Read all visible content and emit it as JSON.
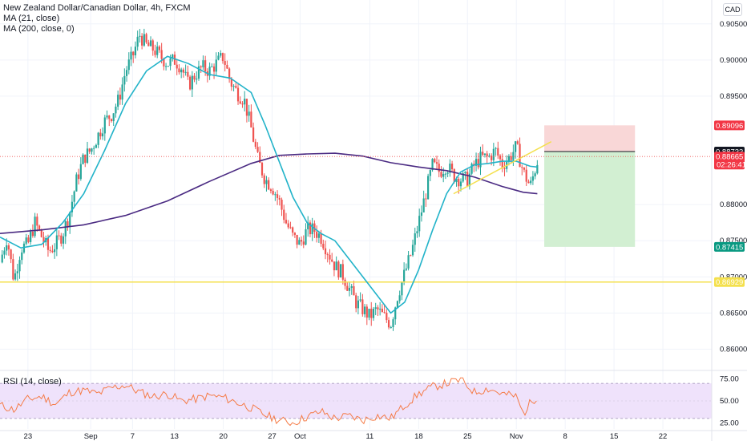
{
  "header": {
    "symbol_title": "New Zealand Dollar/Canadian Dollar, 4h, FXCM",
    "indicators": [
      "MA (21, close)",
      "MA (200, close, 0)"
    ],
    "currency": "CAD",
    "rsi_title": "RSI (14, close)"
  },
  "colors": {
    "up": "#26a69a",
    "down": "#ef5350",
    "ma21": "#22b3c9",
    "ma200": "#4a2a82",
    "support_line": "#f4e04d",
    "trendline": "#f4e04d",
    "stop_zone": "#f9d7d7",
    "target_zone": "#d2efd2",
    "rsi_line": "#f57c48",
    "rsi_band": "#efe2fb"
  },
  "chart_data": {
    "type": "candlestick",
    "x_labels": [
      {
        "label": "23",
        "day": 0
      },
      {
        "label": "Sep",
        "day": 9
      },
      {
        "label": "7",
        "day": 15
      },
      {
        "label": "13",
        "day": 21
      },
      {
        "label": "20",
        "day": 28
      },
      {
        "label": "27",
        "day": 35
      },
      {
        "label": "Oct",
        "day": 39
      },
      {
        "label": "11",
        "day": 49
      },
      {
        "label": "18",
        "day": 56
      },
      {
        "label": "25",
        "day": 63
      },
      {
        "label": "Nov",
        "day": 70
      },
      {
        "label": "8",
        "day": 77
      },
      {
        "label": "15",
        "day": 84
      },
      {
        "label": "22",
        "day": 91
      }
    ],
    "y_ticks": [
      "0.90500",
      "0.90000",
      "0.89500",
      "0.88000",
      "0.87500",
      "0.87000",
      "0.86500",
      "0.86000"
    ],
    "y_range": [
      0.8575,
      0.9083
    ],
    "x_range_days": [
      -4.0,
      98.0
    ],
    "price_path": [
      [
        -4,
        0.872
      ],
      [
        -3,
        0.8755
      ],
      [
        -2,
        0.8695
      ],
      [
        -1,
        0.874
      ],
      [
        0,
        0.8745
      ],
      [
        1,
        0.8775
      ],
      [
        2,
        0.8755
      ],
      [
        3,
        0.8735
      ],
      [
        4,
        0.8745
      ],
      [
        5,
        0.876
      ],
      [
        6,
        0.879
      ],
      [
        7,
        0.8835
      ],
      [
        8,
        0.8865
      ],
      [
        9,
        0.8875
      ],
      [
        10,
        0.8895
      ],
      [
        11,
        0.8915
      ],
      [
        12,
        0.8925
      ],
      [
        13,
        0.8945
      ],
      [
        14,
        0.8985
      ],
      [
        15,
        0.9005
      ],
      [
        16,
        0.9035
      ],
      [
        17,
        0.902
      ],
      [
        18,
        0.9015
      ],
      [
        19,
        0.9005
      ],
      [
        20,
        0.8995
      ],
      [
        21,
        0.9
      ],
      [
        22,
        0.899
      ],
      [
        23,
        0.8965
      ],
      [
        24,
        0.898
      ],
      [
        25,
        0.899
      ],
      [
        26,
        0.8985
      ],
      [
        27,
        0.8995
      ],
      [
        28,
        0.9005
      ],
      [
        29,
        0.897
      ],
      [
        30,
        0.8955
      ],
      [
        31,
        0.8945
      ],
      [
        32,
        0.8905
      ],
      [
        33,
        0.886
      ],
      [
        34,
        0.8835
      ],
      [
        35,
        0.8825
      ],
      [
        36,
        0.8805
      ],
      [
        37,
        0.8775
      ],
      [
        38,
        0.8755
      ],
      [
        39,
        0.8745
      ],
      [
        40,
        0.8765
      ],
      [
        41,
        0.8765
      ],
      [
        42,
        0.8755
      ],
      [
        43,
        0.8735
      ],
      [
        44,
        0.8715
      ],
      [
        45,
        0.8705
      ],
      [
        46,
        0.8685
      ],
      [
        47,
        0.8665
      ],
      [
        48,
        0.8655
      ],
      [
        49,
        0.8645
      ],
      [
        50,
        0.8655
      ],
      [
        51,
        0.8645
      ],
      [
        52,
        0.8635
      ],
      [
        53,
        0.8675
      ],
      [
        54,
        0.8705
      ],
      [
        55,
        0.8735
      ],
      [
        56,
        0.8775
      ],
      [
        57,
        0.8815
      ],
      [
        58,
        0.8855
      ],
      [
        59,
        0.8845
      ],
      [
        60,
        0.8855
      ],
      [
        61,
        0.884
      ],
      [
        62,
        0.8835
      ],
      [
        63,
        0.8835
      ],
      [
        64,
        0.8855
      ],
      [
        65,
        0.8865
      ],
      [
        66,
        0.8865
      ],
      [
        67,
        0.8875
      ],
      [
        68,
        0.8855
      ],
      [
        69,
        0.8865
      ],
      [
        70,
        0.888
      ],
      [
        71,
        0.8845
      ],
      [
        72,
        0.8825
      ],
      [
        73,
        0.886
      ]
    ],
    "ma21": [
      [
        -4,
        0.8755
      ],
      [
        -1,
        0.874
      ],
      [
        2,
        0.8745
      ],
      [
        5,
        0.8775
      ],
      [
        8,
        0.8815
      ],
      [
        11,
        0.8875
      ],
      [
        14,
        0.894
      ],
      [
        17,
        0.8985
      ],
      [
        20,
        0.9005
      ],
      [
        23,
        0.8995
      ],
      [
        26,
        0.898
      ],
      [
        29,
        0.8975
      ],
      [
        32,
        0.8955
      ],
      [
        34,
        0.891
      ],
      [
        36,
        0.886
      ],
      [
        38,
        0.881
      ],
      [
        40,
        0.8775
      ],
      [
        42,
        0.876
      ],
      [
        44,
        0.875
      ],
      [
        46,
        0.8725
      ],
      [
        48,
        0.87
      ],
      [
        50,
        0.8675
      ],
      [
        52,
        0.865
      ],
      [
        54,
        0.8665
      ],
      [
        56,
        0.871
      ],
      [
        58,
        0.8765
      ],
      [
        60,
        0.8815
      ],
      [
        62,
        0.8845
      ],
      [
        64,
        0.8855
      ],
      [
        66,
        0.8857
      ],
      [
        68,
        0.886
      ],
      [
        70,
        0.886
      ],
      [
        72,
        0.8853
      ],
      [
        73,
        0.8852
      ]
    ],
    "ma200": [
      [
        -4,
        0.876
      ],
      [
        2,
        0.8765
      ],
      [
        8,
        0.8772
      ],
      [
        14,
        0.8785
      ],
      [
        20,
        0.8805
      ],
      [
        26,
        0.8832
      ],
      [
        32,
        0.8857
      ],
      [
        36,
        0.8868
      ],
      [
        40,
        0.887
      ],
      [
        44,
        0.8871
      ],
      [
        48,
        0.8867
      ],
      [
        52,
        0.8858
      ],
      [
        56,
        0.8852
      ],
      [
        60,
        0.8847
      ],
      [
        64,
        0.8838
      ],
      [
        68,
        0.8825
      ],
      [
        71,
        0.8817
      ],
      [
        73,
        0.8815
      ]
    ],
    "current_price": 0.88665,
    "countdown": "02:26:41",
    "position": {
      "entry": 0.88733,
      "stop": 0.89096,
      "target": 0.87415,
      "start_day": 74,
      "end_day": 87
    },
    "support_level": 0.86929,
    "trendline": [
      [
        61,
        0.8815
      ],
      [
        75,
        0.8887
      ]
    ],
    "price_tags": [
      {
        "value": "0.89096",
        "kind": "stop"
      },
      {
        "value": "0.88733",
        "kind": "entry"
      },
      {
        "value": "0.88665",
        "kind": "current"
      },
      {
        "value": "0.87415",
        "kind": "target"
      },
      {
        "value": "0.86929",
        "kind": "support"
      }
    ],
    "rsi": {
      "ticks": [
        "75.00",
        "50.00",
        "25.00"
      ],
      "band": [
        30,
        70
      ],
      "range": [
        18,
        82
      ],
      "path": [
        [
          -4,
          45
        ],
        [
          -2,
          40
        ],
        [
          0,
          52
        ],
        [
          2,
          55
        ],
        [
          4,
          46
        ],
        [
          6,
          60
        ],
        [
          8,
          62
        ],
        [
          10,
          58
        ],
        [
          12,
          65
        ],
        [
          14,
          68
        ],
        [
          16,
          60
        ],
        [
          18,
          55
        ],
        [
          20,
          58
        ],
        [
          22,
          50
        ],
        [
          24,
          52
        ],
        [
          26,
          56
        ],
        [
          28,
          54
        ],
        [
          30,
          48
        ],
        [
          32,
          42
        ],
        [
          34,
          34
        ],
        [
          36,
          28
        ],
        [
          38,
          25
        ],
        [
          40,
          32
        ],
        [
          42,
          38
        ],
        [
          44,
          30
        ],
        [
          46,
          33
        ],
        [
          48,
          28
        ],
        [
          50,
          33
        ],
        [
          52,
          30
        ],
        [
          54,
          45
        ],
        [
          56,
          58
        ],
        [
          58,
          66
        ],
        [
          60,
          70
        ],
        [
          62,
          74
        ],
        [
          64,
          60
        ],
        [
          66,
          64
        ],
        [
          68,
          58
        ],
        [
          70,
          55
        ],
        [
          71,
          35
        ],
        [
          72,
          48
        ],
        [
          73,
          55
        ]
      ]
    }
  }
}
